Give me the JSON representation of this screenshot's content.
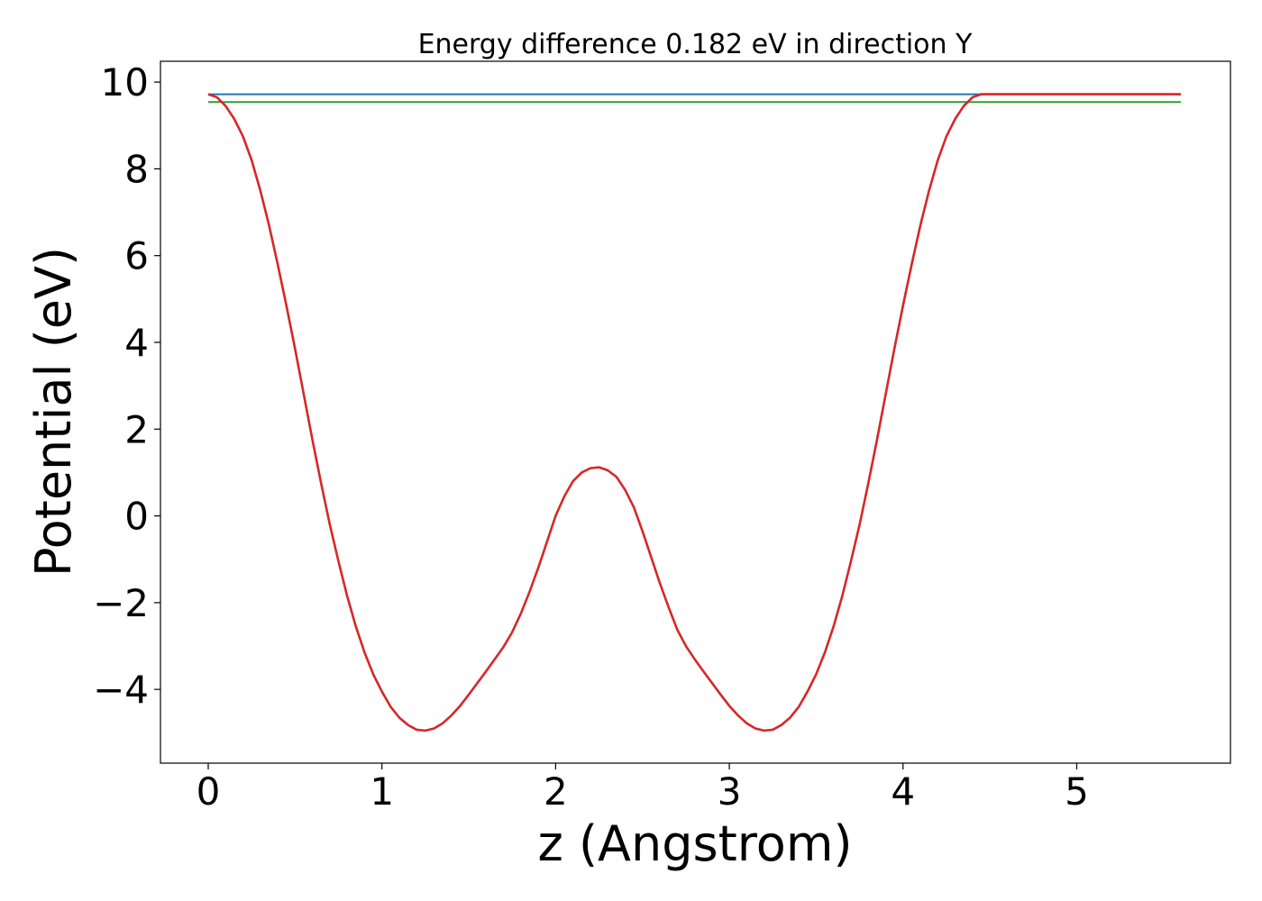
{
  "chart_data": {
    "type": "line",
    "title": "Energy difference 0.182 eV in direction Y",
    "xlabel": "z (Angstrom)",
    "ylabel": "Potential (eV)",
    "xlim": [
      -0.275,
      5.885
    ],
    "ylim": [
      -5.7,
      10.48
    ],
    "xticks": [
      0,
      1,
      2,
      3,
      4,
      5
    ],
    "xtick_labels": [
      "0",
      "1",
      "2",
      "3",
      "4",
      "5"
    ],
    "yticks": [
      -4,
      -2,
      0,
      2,
      4,
      6,
      8,
      10
    ],
    "ytick_labels": [
      "−4",
      "−2",
      "0",
      "2",
      "4",
      "6",
      "8",
      "10"
    ],
    "grid": false,
    "series": [
      {
        "color": "#d62728",
        "x": [
          0.0,
          0.05,
          0.1,
          0.15,
          0.2,
          0.25,
          0.3,
          0.35,
          0.4,
          0.45,
          0.5,
          0.55,
          0.6,
          0.65,
          0.7,
          0.75,
          0.8,
          0.85,
          0.9,
          0.95,
          1.0,
          1.05,
          1.1,
          1.15,
          1.2,
          1.25,
          1.3,
          1.35,
          1.4,
          1.45,
          1.5,
          1.55,
          1.6,
          1.65,
          1.7,
          1.75,
          1.8,
          1.85,
          1.9,
          1.95,
          2.0,
          2.05,
          2.1,
          2.15,
          2.2,
          2.25,
          2.3,
          2.35,
          2.4,
          2.45,
          2.5,
          2.55,
          2.6,
          2.65,
          2.7,
          2.75,
          2.8,
          2.85,
          2.9,
          2.95,
          3.0,
          3.05,
          3.1,
          3.15,
          3.2,
          3.25,
          3.3,
          3.35,
          3.4,
          3.45,
          3.5,
          3.55,
          3.6,
          3.65,
          3.7,
          3.75,
          3.8,
          3.85,
          3.9,
          3.95,
          4.0,
          4.05,
          4.1,
          4.15,
          4.2,
          4.25,
          4.3,
          4.35,
          4.4,
          4.45,
          4.5,
          4.55,
          4.6,
          4.65,
          4.7,
          4.75,
          4.8,
          4.85,
          4.9,
          4.95,
          5.0,
          5.05,
          5.1,
          5.15,
          5.2,
          5.25,
          5.3,
          5.35,
          5.4,
          5.45,
          5.5,
          5.55,
          5.6
        ],
        "y": [
          9.72,
          9.65,
          9.45,
          9.15,
          8.75,
          8.2,
          7.5,
          6.7,
          5.8,
          4.85,
          3.85,
          2.8,
          1.75,
          0.75,
          -0.2,
          -1.05,
          -1.85,
          -2.55,
          -3.15,
          -3.65,
          -4.05,
          -4.4,
          -4.65,
          -4.82,
          -4.93,
          -4.95,
          -4.9,
          -4.78,
          -4.6,
          -4.38,
          -4.12,
          -3.85,
          -3.58,
          -3.3,
          -3.02,
          -2.68,
          -2.25,
          -1.75,
          -1.2,
          -0.6,
          0.0,
          0.45,
          0.8,
          1.0,
          1.1,
          1.12,
          1.05,
          0.9,
          0.6,
          0.2,
          -0.35,
          -0.95,
          -1.55,
          -2.1,
          -2.62,
          -3.0,
          -3.3,
          -3.58,
          -3.85,
          -4.12,
          -4.38,
          -4.6,
          -4.78,
          -4.9,
          -4.95,
          -4.93,
          -4.82,
          -4.65,
          -4.4,
          -4.05,
          -3.65,
          -3.15,
          -2.55,
          -1.85,
          -1.05,
          -0.2,
          0.75,
          1.75,
          2.8,
          3.85,
          4.85,
          5.8,
          6.7,
          7.5,
          8.2,
          8.75,
          9.15,
          9.45,
          9.65,
          9.72,
          9.72,
          9.72,
          9.72,
          9.72,
          9.72,
          9.72,
          9.72,
          9.72,
          9.72,
          9.72,
          9.72,
          9.72,
          9.72,
          9.72,
          9.72,
          9.72,
          9.72,
          9.72,
          9.72,
          9.72,
          9.72,
          9.72,
          9.72
        ]
      },
      {
        "color": "#1f77b4",
        "x": [
          0.0,
          5.6
        ],
        "y": [
          9.72,
          9.72
        ]
      },
      {
        "color": "#2ca02c",
        "x": [
          0.0,
          5.6
        ],
        "y": [
          9.54,
          9.54
        ]
      }
    ]
  }
}
